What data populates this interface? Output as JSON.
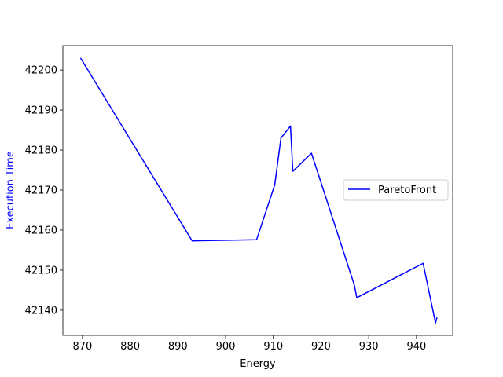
{
  "chart_data": {
    "type": "line",
    "xlabel": "Energy",
    "ylabel": "Execution Time",
    "xlim": [
      865.9,
      947.6
    ],
    "ylim": [
      42133.7,
      42206.1
    ],
    "xticks": [
      870,
      880,
      890,
      900,
      910,
      920,
      930,
      940
    ],
    "yticks": [
      42140,
      42150,
      42160,
      42170,
      42180,
      42190,
      42200
    ],
    "grid": false,
    "legend_position": "center-right",
    "colors": {
      "line": "#0000ff",
      "ylabel": "#0000ff",
      "xlabel": "#000000"
    },
    "series": [
      {
        "name": "ParetoFront",
        "x": [
          869.6,
          893.0,
          906.5,
          910.3,
          911.6,
          913.6,
          914.1,
          918.0,
          927.0,
          927.5,
          941.4,
          944.0,
          944.3
        ],
        "y": [
          42203.0,
          42157.3,
          42157.6,
          42171.3,
          42183.0,
          42186.0,
          42174.7,
          42179.2,
          42146.2,
          42143.1,
          42151.7,
          42136.8,
          42138.2
        ]
      }
    ]
  }
}
